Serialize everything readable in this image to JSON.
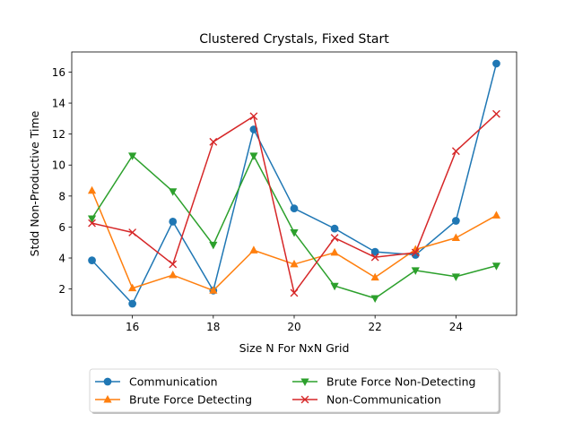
{
  "chart_data": {
    "type": "line",
    "title": "Clustered Crystals, Fixed Start",
    "xlabel": "Size N For NxN Grid",
    "ylabel": "Stdd Non-Productive Time",
    "xlim": [
      14.5,
      25.5
    ],
    "ylim": [
      0.3,
      17.3
    ],
    "xticks": [
      16,
      18,
      20,
      22,
      24
    ],
    "yticks": [
      2,
      4,
      6,
      8,
      10,
      12,
      14,
      16
    ],
    "grid": false,
    "legend_placement": "below",
    "x": [
      15,
      16,
      17,
      18,
      19,
      20,
      21,
      22,
      23,
      24,
      25
    ],
    "series": [
      {
        "name": "Communication",
        "color": "#1f77b4",
        "marker": "circle",
        "values": [
          3.85,
          1.05,
          6.35,
          1.9,
          12.3,
          7.2,
          5.9,
          4.4,
          4.2,
          6.4,
          16.55
        ]
      },
      {
        "name": "Brute Force Detecting",
        "color": "#ff7f0e",
        "marker": "triangle-up",
        "values": [
          8.35,
          2.05,
          2.9,
          1.9,
          4.5,
          3.6,
          4.35,
          2.75,
          4.55,
          5.3,
          6.75
        ]
      },
      {
        "name": "Brute Force Non-Detecting",
        "color": "#2ca02c",
        "marker": "triangle-down",
        "values": [
          6.55,
          10.6,
          8.3,
          4.85,
          10.6,
          5.65,
          2.2,
          1.4,
          3.2,
          2.8,
          3.5
        ]
      },
      {
        "name": "Non-Communication",
        "color": "#d62728",
        "marker": "x",
        "values": [
          6.25,
          5.65,
          3.6,
          11.5,
          13.15,
          1.75,
          5.3,
          4.05,
          4.35,
          10.9,
          13.3
        ]
      }
    ],
    "legend_order": [
      0,
      1,
      2,
      3
    ]
  }
}
